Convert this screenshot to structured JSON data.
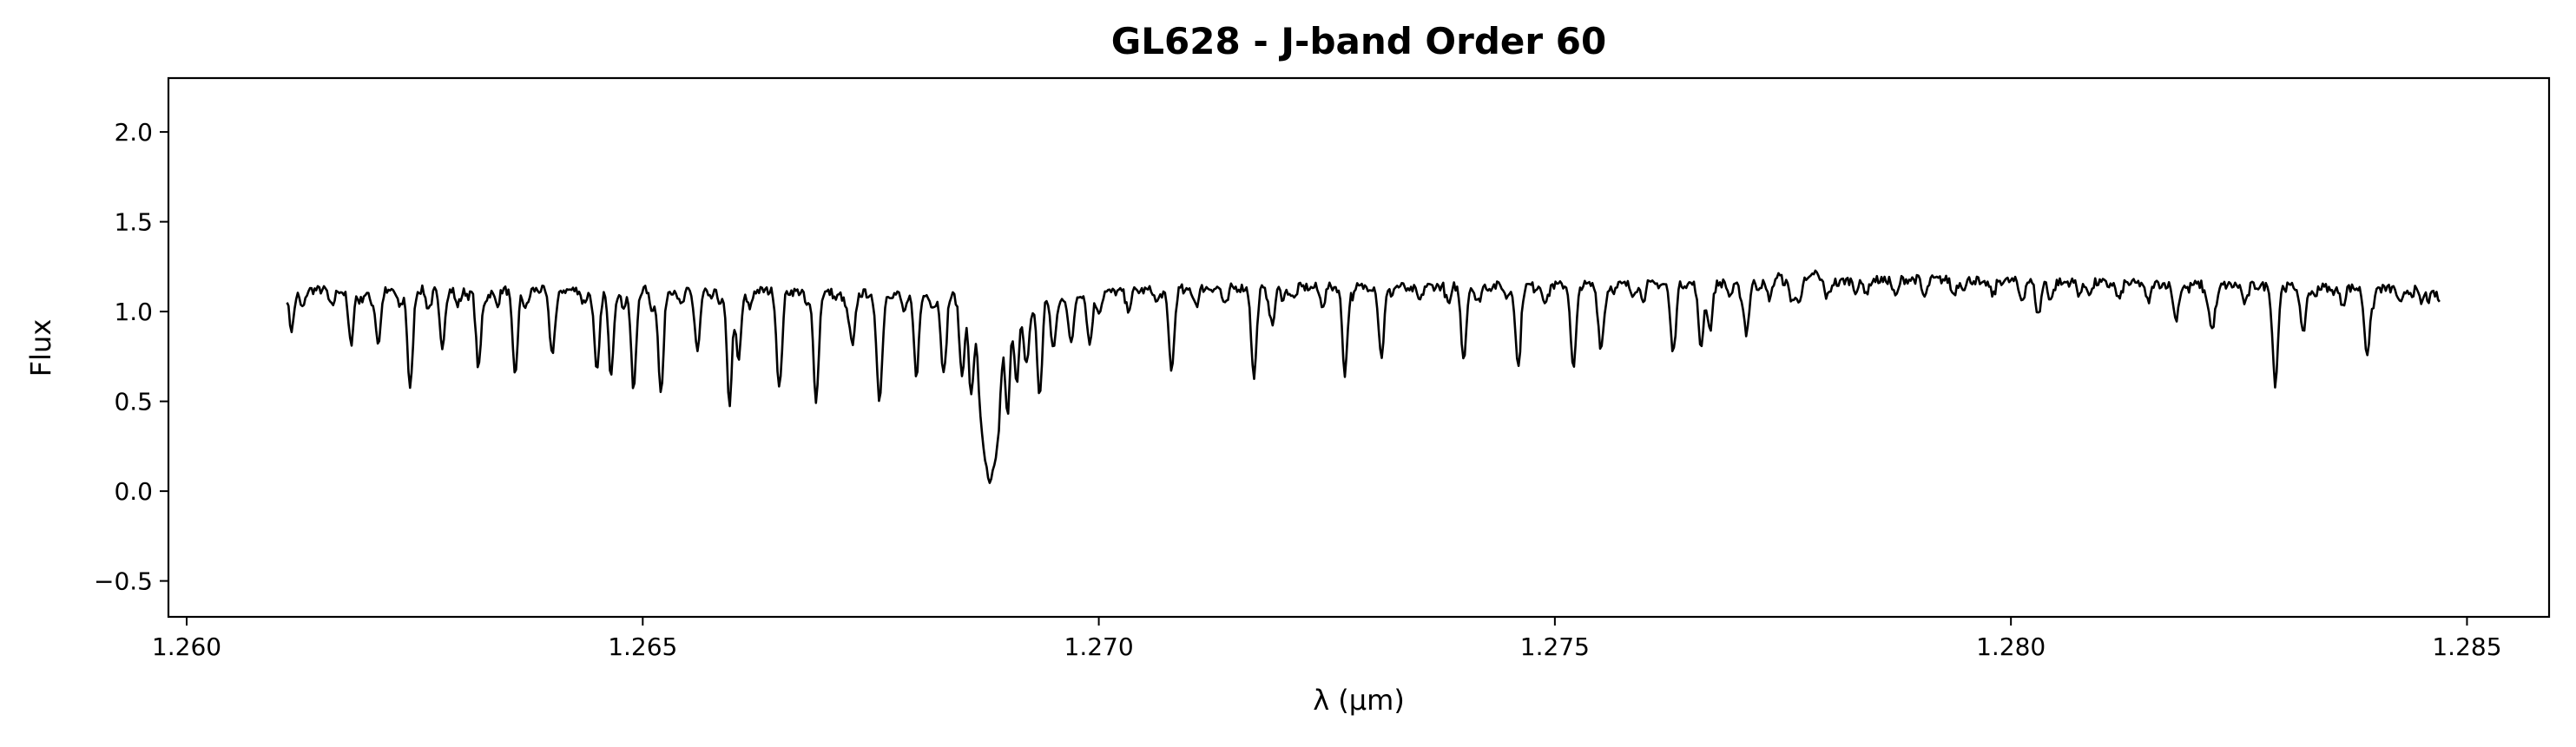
{
  "chart_data": {
    "type": "line",
    "title": "GL628 - J-band Order 60",
    "xlabel": "λ (μm)",
    "ylabel": "Flux",
    "xlim": [
      1.2598,
      1.2859
    ],
    "ylim": [
      -0.7,
      2.3
    ],
    "x_ticks": [
      "1.260",
      "1.265",
      "1.270",
      "1.275",
      "1.280",
      "1.285"
    ],
    "y_ticks": [
      "−0.5",
      "0.0",
      "0.5",
      "1.0",
      "1.5",
      "2.0"
    ],
    "grid": false,
    "legend": "none",
    "line_color": "#000000",
    "series": [
      {
        "x_range": [
          1.2611,
          1.2847
        ],
        "continuum": [
          [
            1.2611,
            1.12
          ],
          [
            1.266,
            1.12
          ],
          [
            1.269,
            1.08
          ],
          [
            1.271,
            1.13
          ],
          [
            1.276,
            1.15
          ],
          [
            1.279,
            1.18
          ],
          [
            1.282,
            1.15
          ],
          [
            1.2847,
            1.12
          ]
        ],
        "absorption_lines": [
          [
            1.26115,
            0.9
          ],
          [
            1.2618,
            0.82
          ],
          [
            1.2621,
            0.82
          ],
          [
            1.26245,
            0.56
          ],
          [
            1.2628,
            0.8
          ],
          [
            1.2632,
            0.68
          ],
          [
            1.2636,
            0.64
          ],
          [
            1.264,
            0.82
          ],
          [
            1.2645,
            0.68
          ],
          [
            1.26465,
            0.68
          ],
          [
            1.2649,
            0.56
          ],
          [
            1.2652,
            0.54
          ],
          [
            1.2656,
            0.78
          ],
          [
            1.26595,
            0.48
          ],
          [
            1.26605,
            0.72
          ],
          [
            1.2665,
            0.66
          ],
          [
            1.2669,
            0.54
          ],
          [
            1.2673,
            0.8
          ],
          [
            1.2676,
            0.54
          ],
          [
            1.268,
            0.66
          ],
          [
            1.2683,
            0.7
          ],
          [
            1.2685,
            0.66
          ],
          [
            1.2686,
            0.6
          ],
          [
            1.2687,
            0.55
          ],
          [
            1.26875,
            0.45
          ],
          [
            1.2688,
            0.3
          ],
          [
            1.26885,
            0.4
          ],
          [
            1.2689,
            0.5
          ],
          [
            1.269,
            0.42
          ],
          [
            1.2691,
            0.62
          ],
          [
            1.2692,
            0.7
          ],
          [
            1.26935,
            0.55
          ],
          [
            1.2695,
            0.78
          ],
          [
            1.2697,
            0.88
          ],
          [
            1.2699,
            0.82
          ],
          [
            1.2708,
            0.68
          ],
          [
            1.2717,
            0.72
          ],
          [
            1.2719,
            0.92
          ],
          [
            1.2727,
            0.64
          ],
          [
            1.2731,
            0.82
          ],
          [
            1.274,
            0.74
          ],
          [
            1.2746,
            0.74
          ],
          [
            1.2752,
            0.76
          ],
          [
            1.2755,
            0.84
          ],
          [
            1.2763,
            0.86
          ],
          [
            1.2766,
            0.9
          ],
          [
            1.2767,
            0.9
          ],
          [
            1.2771,
            0.88
          ],
          [
            1.2776,
            0.94
          ],
          [
            1.2803,
            0.98
          ],
          [
            1.2818,
            1.03
          ],
          [
            1.2822,
            0.92
          ],
          [
            1.2829,
            0.69
          ],
          [
            1.2832,
            0.94
          ],
          [
            1.2839,
            0.79
          ],
          [
            1.2845,
            1.05
          ]
        ],
        "emission_features": [
          [
            1.27275,
            1.23
          ],
          [
            1.2776,
            1.29
          ],
          [
            1.27785,
            1.22
          ],
          [
            1.27745,
            1.2
          ]
        ]
      }
    ]
  }
}
